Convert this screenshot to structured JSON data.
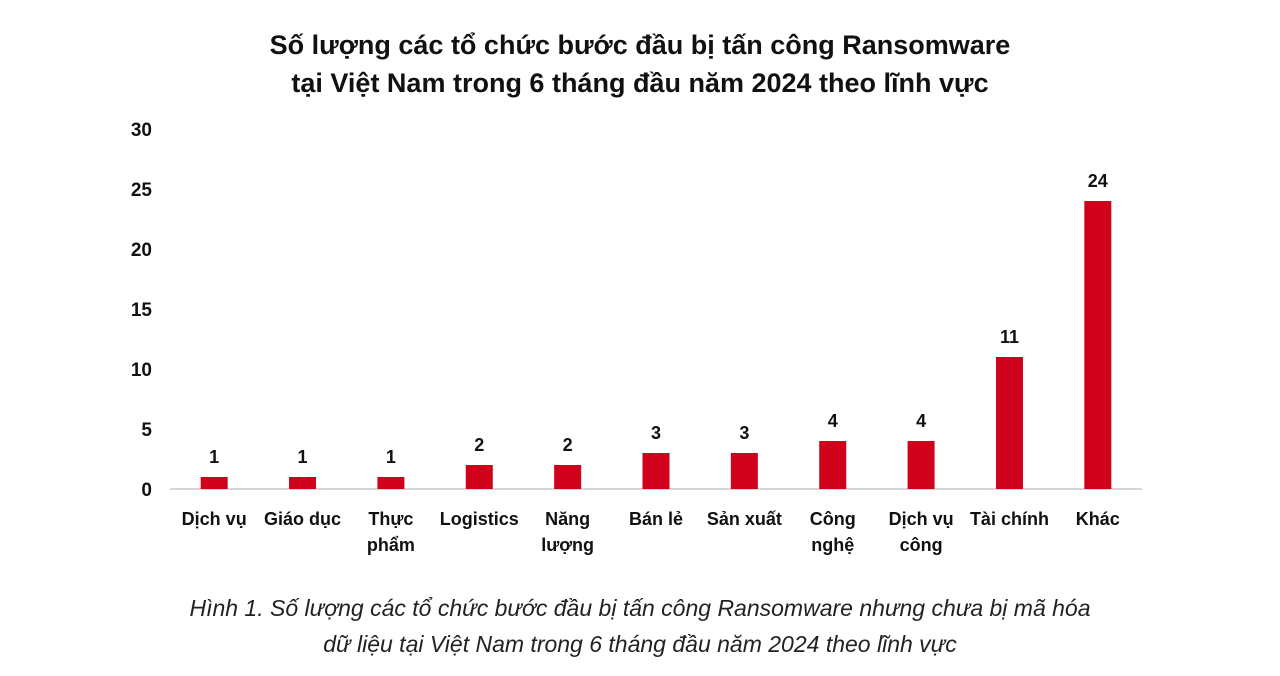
{
  "chart_data": {
    "type": "bar",
    "title": [
      "Số lượng các tổ chức bước đầu bị tấn công Ransomware",
      "tại Việt Nam trong 6 tháng đầu năm 2024 theo lĩnh vực"
    ],
    "categories": [
      [
        "Dịch vụ"
      ],
      [
        "Giáo dục"
      ],
      [
        "Thực",
        "phẩm"
      ],
      [
        "Logistics"
      ],
      [
        "Năng",
        "lượng"
      ],
      [
        "Bán lẻ"
      ],
      [
        "Sản xuất"
      ],
      [
        "Công",
        "nghệ"
      ],
      [
        "Dịch vụ",
        "công"
      ],
      [
        "Tài chính"
      ],
      [
        "Khác"
      ]
    ],
    "values": [
      1,
      1,
      1,
      2,
      2,
      3,
      3,
      4,
      4,
      11,
      24
    ],
    "data_labels": [
      "1",
      "1",
      "1",
      "2",
      "2",
      "3",
      "3",
      "4",
      "4",
      "11",
      "24"
    ],
    "y_ticks": [
      0,
      5,
      10,
      15,
      20,
      25,
      30
    ],
    "ylim": [
      0,
      30
    ],
    "xlabel": "",
    "ylabel": "",
    "grid": false,
    "legend": "none",
    "bar_color": "#d0021b"
  },
  "caption": [
    "Hình 1. Số lượng các tổ chức bước đầu bị tấn công Ransomware nhưng chưa bị mã hóa",
    "dữ liệu tại Việt Nam trong 6 tháng đầu năm 2024 theo lĩnh vực"
  ]
}
